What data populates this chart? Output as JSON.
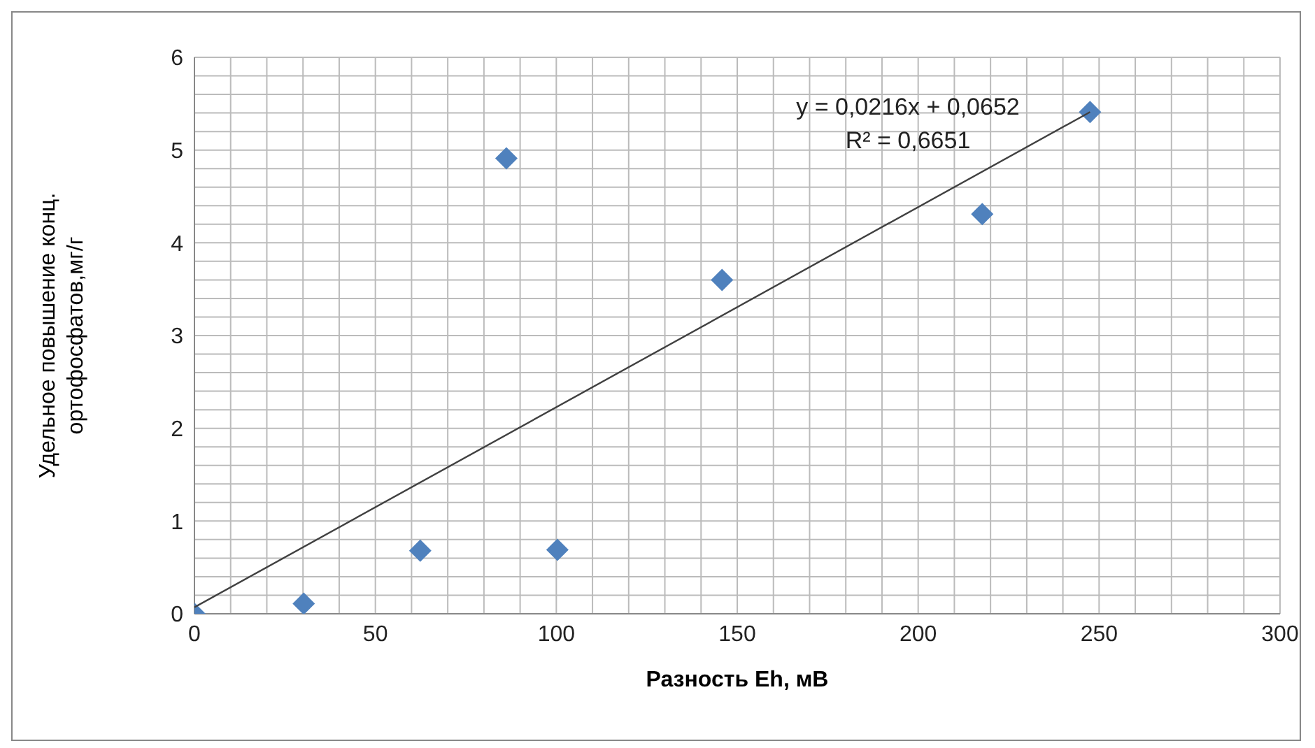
{
  "chart_data": {
    "type": "scatter",
    "xlabel": "Разность Eh, мВ",
    "ylabel": "Удельное повышение конц. ортофосфатов,мг/г",
    "x": [
      0,
      30.2,
      62.4,
      100.3,
      86.2,
      145.8,
      217.7,
      247.5
    ],
    "series": [
      {
        "color": "#4f81bd",
        "marker": "diamond",
        "values": [
          0,
          0.11,
          0.68,
          0.69,
          4.91,
          3.6,
          4.31,
          5.41
        ]
      },
      {
        "type": "line",
        "color": "#404040",
        "marker": "none",
        "line_style": "solid",
        "x": [
          0,
          247.5
        ],
        "values": [
          0.07,
          5.41
        ]
      }
    ],
    "annotations": [
      "y = 0,0216x + 0,0652",
      "R² = 0,6651"
    ],
    "xlim": [
      0,
      300
    ],
    "ylim": [
      0,
      6
    ],
    "xticks": [
      0,
      {
        "value": 10,
        "label": null
      },
      {
        "value": 20,
        "label": null
      },
      {
        "value": 30,
        "label": null
      },
      {
        "value": 40,
        "label": null
      },
      50,
      {
        "value": 60,
        "label": null
      },
      {
        "value": 70,
        "label": null
      },
      {
        "value": 80,
        "label": null
      },
      {
        "value": 90,
        "label": null
      },
      100,
      {
        "value": 110,
        "label": null
      },
      {
        "value": 120,
        "label": null
      },
      {
        "value": 130,
        "label": null
      },
      {
        "value": 140,
        "label": null
      },
      150,
      {
        "value": 160,
        "label": null
      },
      {
        "value": 170,
        "label": null
      },
      {
        "value": 180,
        "label": null
      },
      {
        "value": 190,
        "label": null
      },
      200,
      {
        "value": 210,
        "label": null
      },
      {
        "value": 220,
        "label": null
      },
      {
        "value": 230,
        "label": null
      },
      {
        "value": 240,
        "label": null
      },
      250,
      {
        "value": 260,
        "label": null
      },
      {
        "value": 270,
        "label": null
      },
      {
        "value": 280,
        "label": null
      },
      {
        "value": 290,
        "label": null
      },
      300
    ],
    "yticks": [
      0,
      {
        "value": 0.2,
        "label": null
      },
      {
        "value": 0.4,
        "label": null
      },
      {
        "value": 0.6,
        "label": null
      },
      {
        "value": 0.8,
        "label": null
      },
      1,
      {
        "value": 1.2,
        "label": null
      },
      {
        "value": 1.4,
        "label": null
      },
      {
        "value": 1.6,
        "label": null
      },
      {
        "value": 1.8,
        "label": null
      },
      2,
      {
        "value": 2.2,
        "label": null
      },
      {
        "value": 2.4,
        "label": null
      },
      {
        "value": 2.6,
        "label": null
      },
      {
        "value": 2.8,
        "label": null
      },
      3,
      {
        "value": 3.2,
        "label": null
      },
      {
        "value": 3.4,
        "label": null
      },
      {
        "value": 3.6,
        "label": null
      },
      {
        "value": 3.8,
        "label": null
      },
      4,
      {
        "value": 4.2,
        "label": null
      },
      {
        "value": 4.4,
        "label": null
      },
      {
        "value": 4.6,
        "label": null
      },
      {
        "value": 4.8,
        "label": null
      },
      5,
      {
        "value": 5.2,
        "label": null
      },
      {
        "value": 5.4,
        "label": null
      },
      {
        "value": 5.6,
        "label": null
      },
      {
        "value": 5.8,
        "label": null
      },
      6
    ],
    "grid": true
  }
}
